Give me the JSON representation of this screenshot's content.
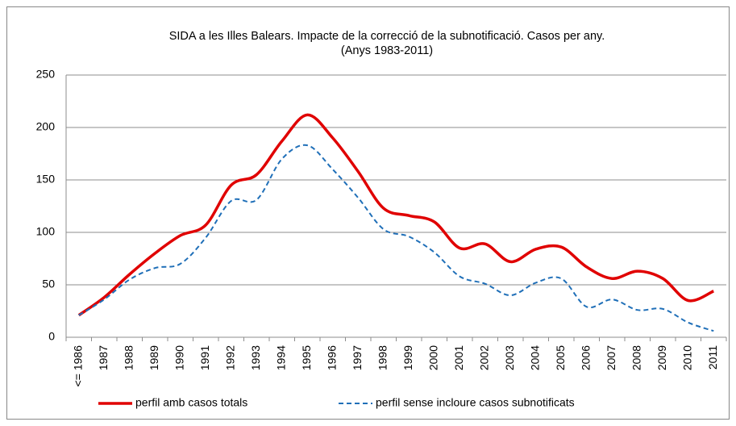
{
  "chart_data": {
    "type": "line",
    "title": "SIDA  a les Illes Balears. Impacte de la correcció de la subnotificació. Casos per any. (Anys 1983-2011)",
    "categories": [
      "<= 1986",
      "1987",
      "1988",
      "1989",
      "1990",
      "1991",
      "1992",
      "1993",
      "1994",
      "1995",
      "1996",
      "1997",
      "1998",
      "1999",
      "2000",
      "2001",
      "2002",
      "2003",
      "2004",
      "2005",
      "2006",
      "2007",
      "2008",
      "2009",
      "2010",
      "2011"
    ],
    "series": [
      {
        "name": "perfil amb casos totals",
        "color": "#e00000",
        "dash": false,
        "values": [
          21,
          38,
          60,
          80,
          97,
          107,
          145,
          155,
          187,
          212,
          190,
          158,
          123,
          116,
          110,
          85,
          89,
          72,
          84,
          86,
          67,
          56,
          63,
          56,
          35,
          44
        ]
      },
      {
        "name": "perfil sense incloure  casos subnotificats",
        "color": "#1f6fb8",
        "dash": true,
        "values": [
          21,
          36,
          55,
          66,
          70,
          95,
          130,
          131,
          170,
          183,
          160,
          133,
          103,
          96,
          81,
          58,
          51,
          40,
          52,
          56,
          29,
          36,
          26,
          27,
          14,
          6
        ]
      }
    ],
    "ylim": [
      0,
      250
    ],
    "yticks": [
      0,
      50,
      100,
      150,
      200,
      250
    ],
    "grid": true,
    "smooth": true,
    "legend": "bottom"
  }
}
